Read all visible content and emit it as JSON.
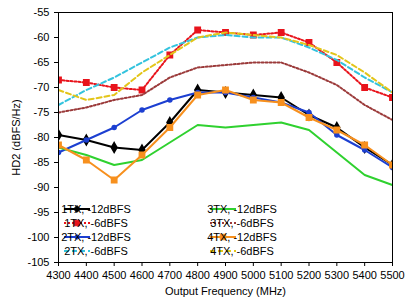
{
  "chart_data": {
    "type": "line",
    "x_label": "Output Frequency (MHz)",
    "y_label": "HD2 (dBFS/Hz)",
    "x": [
      4300,
      4400,
      4500,
      4600,
      4700,
      4800,
      4900,
      5000,
      5100,
      5200,
      5300,
      5400,
      5500
    ],
    "xlim": [
      4300,
      5500
    ],
    "xticks": [
      4300,
      4400,
      4500,
      4600,
      4700,
      4800,
      4900,
      5000,
      5100,
      5200,
      5300,
      5400,
      5500
    ],
    "ylim": [
      -105,
      -55
    ],
    "yticks": [
      -105,
      -100,
      -95,
      -90,
      -85,
      -80,
      -75,
      -70,
      -65,
      -60,
      -55
    ],
    "grid": false,
    "legend": "lower center",
    "series": [
      {
        "name": "1TX, -12dBFS",
        "color": "#000000",
        "line_style": "solid",
        "marker": "diamond",
        "values": [
          -79.5,
          -80.5,
          -82,
          -82.5,
          -77,
          -70.5,
          -71,
          -71.5,
          -72,
          -75.5,
          -78,
          -82,
          -85.5
        ]
      },
      {
        "name": "1TX, -6dBFS",
        "color": "#e8141c",
        "line_style": "dotted",
        "marker": "square",
        "values": [
          -68.5,
          -69,
          -70,
          -70.5,
          -63.5,
          -58.5,
          -59,
          -59.5,
          -59,
          -61,
          -65,
          -70,
          -72
        ]
      },
      {
        "name": "2TX, -12dBFS",
        "color": "#1c3fd1",
        "line_style": "solid",
        "marker": "circle",
        "values": [
          -83,
          -80.5,
          -78,
          -74.5,
          -72.5,
          -71,
          -71,
          -72,
          -73,
          -75,
          -79.5,
          -82.5,
          -86
        ]
      },
      {
        "name": "2TX, -6dBFS",
        "color": "#33c3de",
        "line_style": "dashed",
        "marker": "none",
        "values": [
          -73.5,
          -70.5,
          -68,
          -65,
          -62,
          -60,
          -59.5,
          -60,
          -60,
          -62,
          -64.5,
          -68,
          -71
        ]
      },
      {
        "name": "3TX, -12dBFS",
        "color": "#2fd12f",
        "line_style": "solid",
        "marker": "none",
        "values": [
          -82,
          -83.5,
          -85.5,
          -84.5,
          -81,
          -77.5,
          -78,
          -77.5,
          -77,
          -78.5,
          -83,
          -87.5,
          -89.5
        ]
      },
      {
        "name": "3TX, -6dBFS",
        "color": "#9b3a3a",
        "line_style": "dotted",
        "marker": "none",
        "values": [
          -75,
          -74,
          -72.5,
          -71.5,
          -68,
          -66,
          -65.5,
          -65,
          -65,
          -67,
          -69.5,
          -73.5,
          -76.5
        ]
      },
      {
        "name": "4TX, -12dBFS",
        "color": "#f7901e",
        "line_style": "solid",
        "marker": "square",
        "values": [
          -81.5,
          -84.5,
          -88.5,
          -83.5,
          -78,
          -71.5,
          -70.5,
          -72.5,
          -73,
          -76,
          -78.5,
          -81.5,
          -85.5
        ]
      },
      {
        "name": "4TX, -6dBFS",
        "color": "#e3c51a",
        "line_style": "dashed",
        "marker": "none",
        "values": [
          -70.5,
          -72.5,
          -71.5,
          -67,
          -63.5,
          -60,
          -59,
          -59.5,
          -60,
          -61.5,
          -63.5,
          -67,
          -71
        ]
      }
    ]
  }
}
